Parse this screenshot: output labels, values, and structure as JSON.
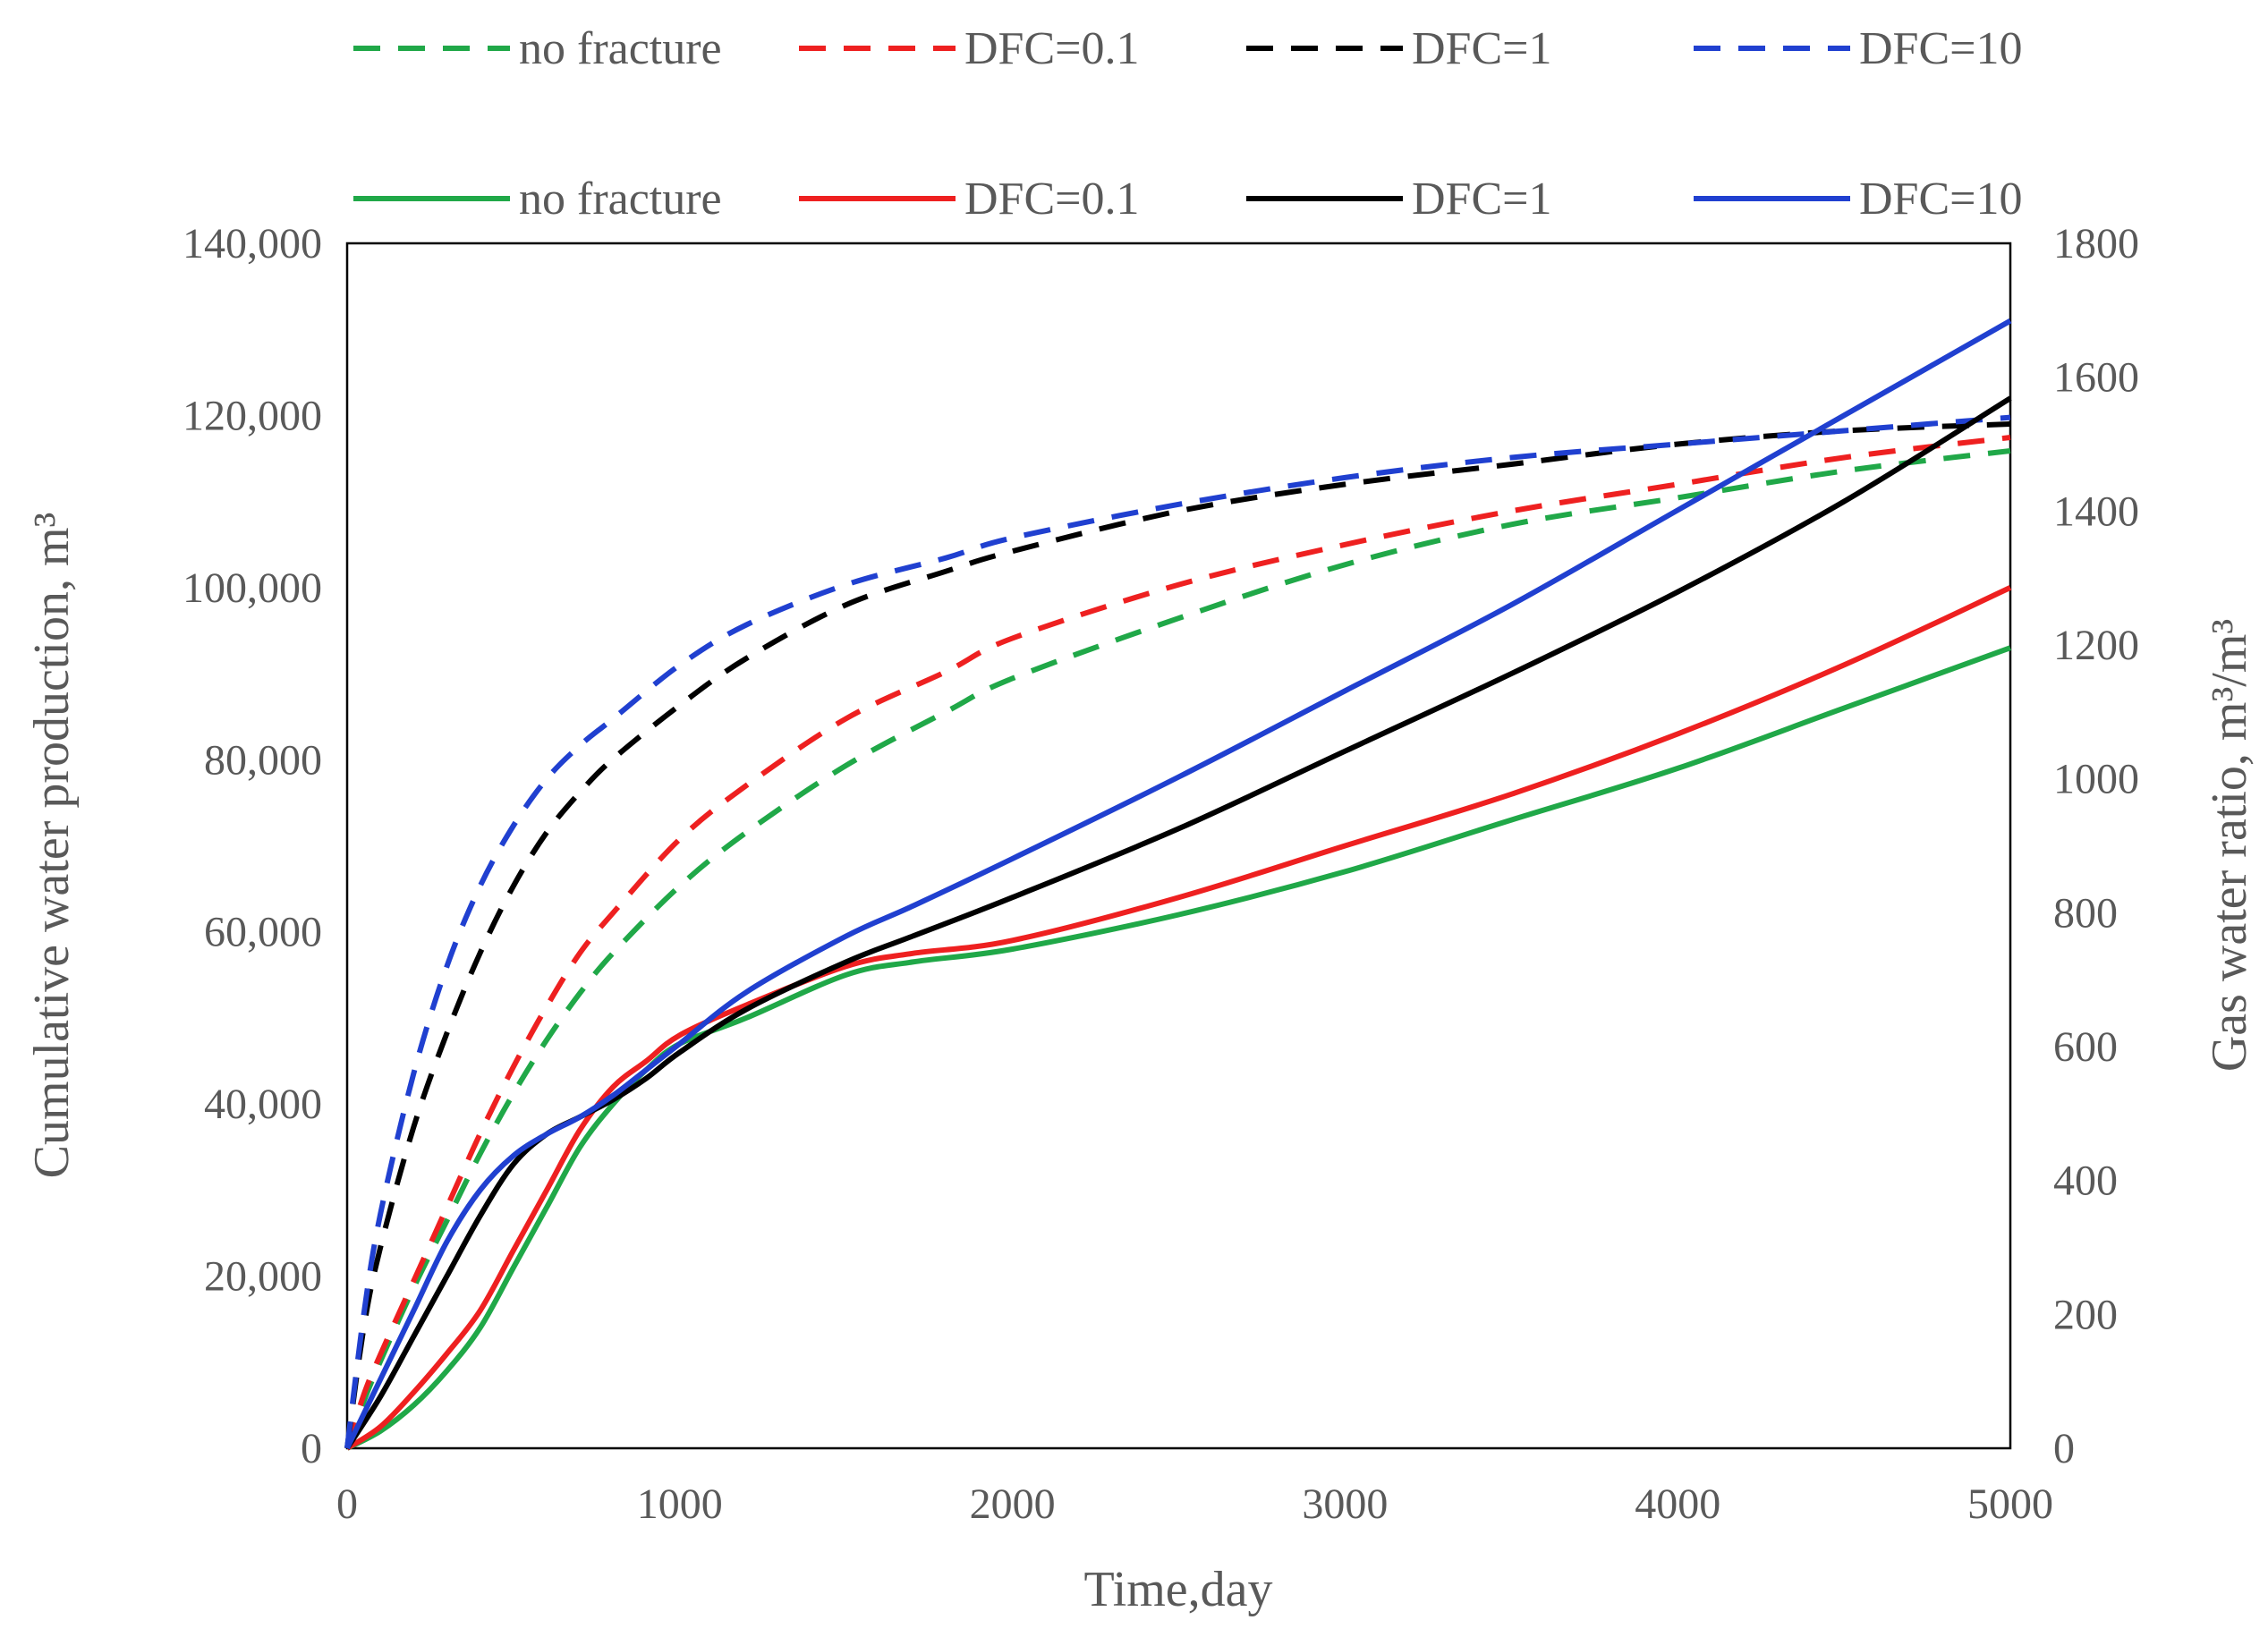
{
  "chart_data": {
    "type": "line",
    "title": "",
    "xlabel": "Time,day",
    "ylabel_left": "Cumulative water production, m³",
    "ylabel_right": "Gas water ratio, m³/m³",
    "xlim": [
      0,
      5000
    ],
    "ylim_left": [
      0,
      140000
    ],
    "ylim_right": [
      0,
      1800
    ],
    "x_ticks": [
      0,
      1000,
      2000,
      3000,
      4000,
      5000
    ],
    "x_tick_labels": [
      "0",
      "1000",
      "2000",
      "3000",
      "4000",
      "5000"
    ],
    "y_left_ticks": [
      0,
      20000,
      40000,
      60000,
      80000,
      100000,
      120000,
      140000
    ],
    "y_left_tick_labels": [
      "0",
      "20,000",
      "40,000",
      "60,000",
      "80,000",
      "100,000",
      "120,000",
      "140,000"
    ],
    "y_right_ticks": [
      0,
      200,
      400,
      600,
      800,
      1000,
      1200,
      1400,
      1600,
      1800
    ],
    "y_right_tick_labels": [
      "0",
      "200",
      "400",
      "600",
      "800",
      "1000",
      "1200",
      "1400",
      "1600",
      "1800"
    ],
    "grid": false,
    "legend_position": "top",
    "series": [
      {
        "name": "no fracture",
        "style": "dashed",
        "axis": "right",
        "color": "#20a848",
        "x": [
          0,
          50,
          100,
          200,
          300,
          400,
          500,
          600,
          700,
          800,
          1000,
          1200,
          1500,
          1800,
          2000,
          2500,
          3000,
          3500,
          4000,
          4500,
          5000
        ],
        "y": [
          0,
          70,
          130,
          240,
          340,
          440,
          530,
          610,
          680,
          740,
          840,
          920,
          1020,
          1100,
          1150,
          1240,
          1320,
          1380,
          1420,
          1460,
          1490
        ]
      },
      {
        "name": "DFC=0.1",
        "style": "dashed",
        "axis": "right",
        "color": "#ee2020",
        "x": [
          0,
          50,
          100,
          200,
          300,
          400,
          500,
          600,
          700,
          800,
          1000,
          1200,
          1500,
          1800,
          2000,
          2500,
          3000,
          3500,
          4000,
          4500,
          5000
        ],
        "y": [
          0,
          80,
          140,
          250,
          360,
          470,
          570,
          660,
          740,
          800,
          910,
          990,
          1090,
          1160,
          1210,
          1290,
          1350,
          1400,
          1440,
          1480,
          1510
        ]
      },
      {
        "name": "DFC=1",
        "style": "dashed",
        "axis": "right",
        "color": "#000000",
        "x": [
          0,
          50,
          100,
          200,
          300,
          400,
          500,
          600,
          700,
          800,
          1000,
          1200,
          1500,
          1800,
          2000,
          2500,
          3000,
          3500,
          4000,
          4500,
          5000
        ],
        "y": [
          0,
          180,
          300,
          480,
          620,
          740,
          840,
          920,
          980,
          1030,
          1110,
          1180,
          1260,
          1310,
          1340,
          1400,
          1440,
          1470,
          1500,
          1520,
          1530
        ]
      },
      {
        "name": "DFC=10",
        "style": "dashed",
        "axis": "right",
        "color": "#2040d0",
        "x": [
          0,
          50,
          100,
          200,
          300,
          400,
          500,
          600,
          700,
          800,
          1000,
          1200,
          1500,
          1800,
          2000,
          2500,
          3000,
          3500,
          4000,
          4500,
          5000
        ],
        "y": [
          0,
          200,
          350,
          560,
          720,
          840,
          930,
          1000,
          1050,
          1090,
          1170,
          1230,
          1290,
          1330,
          1360,
          1410,
          1450,
          1480,
          1500,
          1520,
          1540
        ]
      },
      {
        "name": "no fracture",
        "style": "solid",
        "axis": "left",
        "color": "#20a848",
        "x": [
          0,
          100,
          200,
          300,
          400,
          500,
          600,
          700,
          800,
          900,
          1000,
          1200,
          1500,
          1700,
          2000,
          2500,
          3000,
          3500,
          4000,
          4500,
          5000
        ],
        "y": [
          0,
          2000,
          5000,
          9000,
          14000,
          21000,
          28000,
          35000,
          40000,
          44000,
          47000,
          50000,
          55000,
          56500,
          58000,
          62000,
          67000,
          73000,
          79000,
          86000,
          93000
        ]
      },
      {
        "name": "DFC=0.1",
        "style": "solid",
        "axis": "left",
        "color": "#ee2020",
        "x": [
          0,
          100,
          200,
          300,
          400,
          500,
          600,
          700,
          800,
          900,
          1000,
          1200,
          1500,
          1700,
          2000,
          2500,
          3000,
          3500,
          4000,
          4500,
          5000
        ],
        "y": [
          0,
          2500,
          6500,
          11000,
          16000,
          23000,
          30000,
          37000,
          42000,
          45000,
          48000,
          51500,
          56000,
          57500,
          59000,
          64000,
          70000,
          76000,
          83000,
          91000,
          100000
        ]
      },
      {
        "name": "DFC=1",
        "style": "solid",
        "axis": "left",
        "color": "#000000",
        "x": [
          0,
          100,
          200,
          300,
          400,
          500,
          600,
          700,
          800,
          900,
          1000,
          1200,
          1500,
          1700,
          2000,
          2500,
          3000,
          3500,
          4000,
          4500,
          5000
        ],
        "y": [
          0,
          6000,
          13000,
          20000,
          27000,
          33000,
          36500,
          38500,
          40500,
          43000,
          46000,
          51000,
          56500,
          59500,
          64000,
          72000,
          81000,
          90000,
          99500,
          110000,
          122000
        ]
      },
      {
        "name": "DFC=10",
        "style": "solid",
        "axis": "left",
        "color": "#2040d0",
        "x": [
          0,
          100,
          200,
          300,
          400,
          500,
          600,
          700,
          800,
          900,
          1000,
          1200,
          1500,
          1700,
          2000,
          2500,
          3000,
          3500,
          4000,
          4500,
          5000
        ],
        "y": [
          0,
          8000,
          16000,
          24000,
          30000,
          34000,
          36500,
          38500,
          41000,
          44000,
          47000,
          53000,
          59500,
          63000,
          68500,
          78000,
          88000,
          98000,
          109000,
          120000,
          131000
        ]
      }
    ]
  }
}
